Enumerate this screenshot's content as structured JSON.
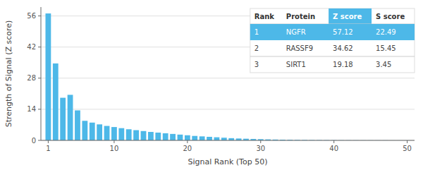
{
  "chart_data": {
    "type": "bar",
    "xlabel": "Signal Rank (Top 50)",
    "ylabel": "Strength of Signal (Z score)",
    "x": [
      1,
      2,
      3,
      4,
      5,
      6,
      7,
      8,
      9,
      10,
      11,
      12,
      13,
      14,
      15,
      16,
      17,
      18,
      19,
      20,
      21,
      22,
      23,
      24,
      25,
      26,
      27,
      28,
      29,
      30,
      31,
      32,
      33,
      34,
      35,
      36,
      37,
      38,
      39,
      40,
      41,
      42,
      43,
      44,
      45,
      46,
      47,
      48,
      49,
      50
    ],
    "values": [
      57.12,
      34.62,
      19.18,
      20.5,
      13.5,
      8.8,
      8.0,
      7.2,
      6.5,
      6.0,
      5.5,
      5.0,
      4.6,
      4.2,
      3.8,
      3.5,
      3.2,
      2.9,
      2.6,
      2.3,
      2.0,
      1.8,
      1.6,
      1.4,
      1.2,
      1.0,
      0.85,
      0.75,
      0.65,
      0.55,
      0.45,
      0.38,
      0.32,
      0.27,
      0.22,
      0.18,
      0.15,
      0.13,
      0.11,
      0.09,
      0.08,
      0.07,
      0.06,
      0.05,
      0.05,
      0.04,
      0.04,
      0.03,
      0.03,
      0.02
    ],
    "color": "#4db8e8",
    "xlim": [
      0.0,
      51
    ],
    "ylim": [
      0,
      60
    ],
    "xticks": [
      1,
      10,
      20,
      30,
      40,
      50
    ],
    "yticks": [
      0,
      14,
      28,
      42,
      56
    ],
    "grid": true,
    "table": {
      "columns": [
        "Rank",
        "Protein",
        "Z score",
        "S score"
      ],
      "rows": [
        [
          "1",
          "NGFR",
          "57.12",
          "22.49"
        ],
        [
          "2",
          "RASSF9",
          "34.62",
          "15.45"
        ],
        [
          "3",
          "SIRT1",
          "19.18",
          "3.45"
        ]
      ],
      "color": "#4db8e8",
      "highlight": [
        true,
        false,
        false
      ],
      "column_highlight": [
        false,
        false,
        true,
        false
      ]
    }
  }
}
